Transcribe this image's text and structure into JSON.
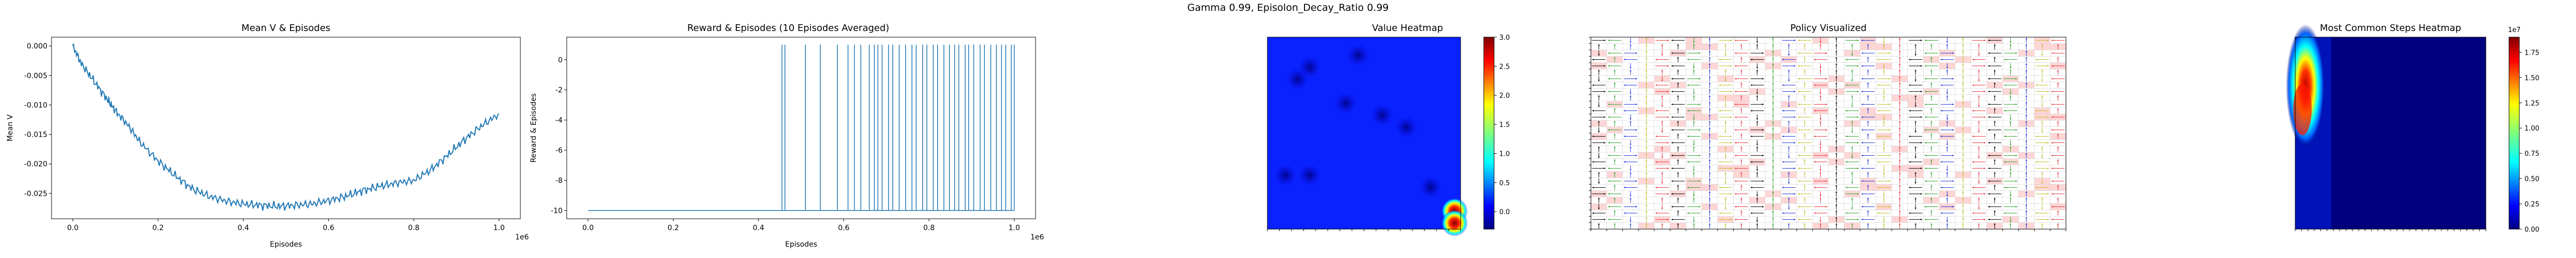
{
  "suptitle": "Gamma  0.99, Episolon_Decay_Ratio 0.99",
  "panels": {
    "mean_v": {
      "title": "Mean V & Episodes",
      "xlabel": "Episodes",
      "ylabel": "Mean V",
      "offset": "1e6"
    },
    "reward": {
      "title": "Reward & Episodes (10 Episodes Averaged)",
      "xlabel": "Episodes",
      "ylabel": "Reward & Episodes",
      "offset": "1e6"
    },
    "value_heatmap": {
      "title": "Value Heatmap",
      "colorbar_ticks": [
        "0.0",
        "0.5",
        "1.0",
        "1.5",
        "2.0",
        "2.5",
        "3.0"
      ]
    },
    "policy": {
      "title": "Policy Visualized"
    },
    "steps_heatmap": {
      "title": "Most Common Steps Heatmap",
      "colorbar_ticks": [
        "0.00",
        "0.25",
        "0.50",
        "0.75",
        "1.00",
        "1.25",
        "1.50",
        "1.75"
      ],
      "colorbar_offset": "1e7"
    }
  },
  "chart_data": [
    {
      "type": "line",
      "title": "Mean V & Episodes",
      "xlabel": "Episodes",
      "ylabel": "Mean V",
      "x_scale_label": "1e6",
      "xlim": [
        -0.05,
        1.05
      ],
      "ylim": [
        -0.0293,
        0.0015
      ],
      "xticks": [
        "0.0",
        "0.2",
        "0.4",
        "0.6",
        "0.8",
        "1.0"
      ],
      "yticks": [
        "0.000",
        "-0.005",
        "-0.010",
        "-0.015",
        "-0.020",
        "-0.025"
      ],
      "color": "#1f77b4",
      "series": [
        {
          "x": [
            0.0,
            0.02,
            0.05,
            0.08,
            0.1,
            0.13,
            0.16,
            0.2,
            0.24,
            0.28,
            0.32,
            0.36,
            0.4,
            0.44,
            0.48,
            0.52,
            0.56,
            0.6,
            0.64,
            0.68,
            0.72,
            0.76,
            0.8,
            0.84,
            0.88,
            0.92,
            0.96,
            1.0
          ],
          "y": [
            0.0,
            -0.003,
            -0.006,
            -0.009,
            -0.011,
            -0.0135,
            -0.0165,
            -0.0195,
            -0.022,
            -0.0242,
            -0.0255,
            -0.0263,
            -0.0268,
            -0.027,
            -0.0272,
            -0.027,
            -0.0268,
            -0.0262,
            -0.0255,
            -0.0245,
            -0.0238,
            -0.0232,
            -0.0228,
            -0.021,
            -0.0185,
            -0.0158,
            -0.0135,
            -0.0115
          ]
        }
      ]
    },
    {
      "type": "line",
      "title": "Reward & Episodes (10 Episodes Averaged)",
      "xlabel": "Episodes",
      "ylabel": "Reward & Episodes",
      "x_scale_label": "1e6",
      "xlim": [
        -0.05,
        1.05
      ],
      "ylim": [
        -10.55,
        1.5
      ],
      "xticks": [
        "0.0",
        "0.2",
        "0.4",
        "0.6",
        "0.8",
        "1.0"
      ],
      "yticks": [
        "0",
        "-2",
        "-4",
        "-6",
        "-8",
        "-10"
      ],
      "color": "#1f77b4",
      "baseline": -10,
      "spike_top": 1,
      "series": [
        {
          "spike_x": [
            0.455,
            0.462,
            0.51,
            0.545,
            0.585,
            0.61,
            0.625,
            0.64,
            0.66,
            0.672,
            0.68,
            0.69,
            0.705,
            0.715,
            0.73,
            0.745,
            0.76,
            0.77,
            0.785,
            0.795,
            0.81,
            0.82,
            0.835,
            0.848,
            0.86,
            0.87,
            0.885,
            0.893,
            0.905,
            0.92,
            0.93,
            0.945,
            0.958,
            0.97,
            0.98,
            0.993,
            1.0
          ]
        }
      ]
    },
    {
      "type": "heatmap",
      "title": "Value Heatmap",
      "colormap": "jet",
      "vmin": -0.3,
      "vmax": 3.0,
      "grid_size": 16,
      "background_value": 0.1,
      "features": [
        {
          "row": 1,
          "col": 7,
          "value": -0.25
        },
        {
          "row": 2,
          "col": 3,
          "value": -0.1
        },
        {
          "row": 3,
          "col": 2,
          "value": -0.05
        },
        {
          "row": 5,
          "col": 6,
          "value": -0.15
        },
        {
          "row": 6,
          "col": 9,
          "value": -0.1
        },
        {
          "row": 7,
          "col": 11,
          "value": -0.05
        },
        {
          "row": 11,
          "col": 1,
          "value": -0.2
        },
        {
          "row": 11,
          "col": 3,
          "value": -0.15
        },
        {
          "row": 12,
          "col": 13,
          "value": -0.1
        },
        {
          "row": 14,
          "col": 15,
          "value": 2.6
        },
        {
          "row": 15,
          "col": 15,
          "value": 3.0
        }
      ]
    },
    {
      "type": "heatmap",
      "title": "Policy Visualized",
      "grid_size": 30,
      "arrow_colors": [
        "#000000",
        "#1f35d6",
        "#e8343c",
        "#2ca02c",
        "#bcbd22"
      ],
      "highlight_color": "#ffd6d6"
    },
    {
      "type": "heatmap",
      "title": "Most Common Steps Heatmap",
      "colormap": "jet",
      "vmin": 0,
      "vmax": 19000000.0,
      "colorbar_offset": "1e7",
      "hotspot": {
        "row": 1,
        "col": 0,
        "value": 19000000.0
      },
      "background_value": 0
    }
  ]
}
